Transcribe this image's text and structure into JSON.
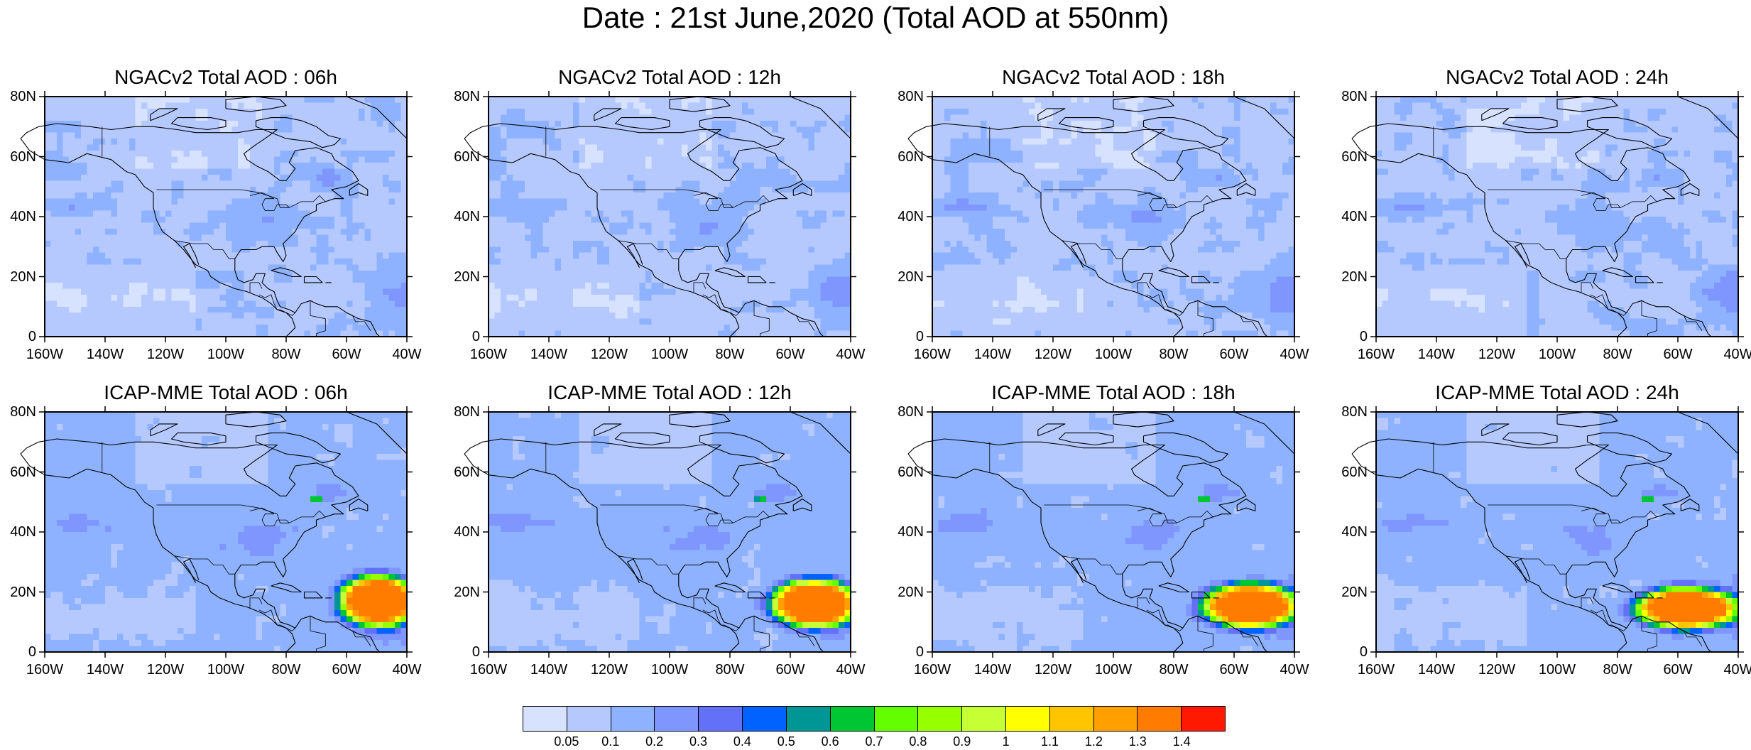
{
  "title": "Date : 21st June,2020 (Total AOD at 550nm)",
  "panels": [
    {
      "title": "NGACv2 Total AOD : 06h",
      "model": "NGACv2",
      "forecast_hour": "06h",
      "dust_plume": false
    },
    {
      "title": "NGACv2 Total AOD : 12h",
      "model": "NGACv2",
      "forecast_hour": "12h",
      "dust_plume": false
    },
    {
      "title": "NGACv2 Total AOD : 18h",
      "model": "NGACv2",
      "forecast_hour": "18h",
      "dust_plume": false
    },
    {
      "title": "NGACv2 Total AOD : 24h",
      "model": "NGACv2",
      "forecast_hour": "24h",
      "dust_plume": false
    },
    {
      "title": "ICAP-MME Total AOD : 06h",
      "model": "ICAP-MME",
      "forecast_hour": "06h",
      "dust_plume": true
    },
    {
      "title": "ICAP-MME Total AOD : 12h",
      "model": "ICAP-MME",
      "forecast_hour": "12h",
      "dust_plume": true
    },
    {
      "title": "ICAP-MME Total AOD : 18h",
      "model": "ICAP-MME",
      "forecast_hour": "18h",
      "dust_plume": true
    },
    {
      "title": "ICAP-MME Total AOD : 24h",
      "model": "ICAP-MME",
      "forecast_hour": "24h",
      "dust_plume": true
    }
  ],
  "axes": {
    "lat_labels": [
      "80N",
      "60N",
      "40N",
      "20N",
      "0"
    ],
    "lon_labels": [
      "160W",
      "140W",
      "120W",
      "100W",
      "80W",
      "60W",
      "40W"
    ],
    "lat_range": [
      0,
      80
    ],
    "lon_range": [
      -160,
      -40
    ]
  },
  "colorbar": {
    "labels": [
      "0.05",
      "0.1",
      "0.2",
      "0.3",
      "0.4",
      "0.5",
      "0.6",
      "0.7",
      "0.8",
      "0.9",
      "1",
      "1.1",
      "1.2",
      "1.3",
      "1.4"
    ],
    "colors": [
      "#ffffff",
      "#d6e2ff",
      "#b5c9ff",
      "#8eb2ff",
      "#7f96ff",
      "#6370f8",
      "#0063ff",
      "#009696",
      "#00c633",
      "#63ff00",
      "#96ff00",
      "#c6ff33",
      "#ffff00",
      "#ffc600",
      "#ffa000",
      "#ff7c00",
      "#ff1900"
    ]
  }
}
